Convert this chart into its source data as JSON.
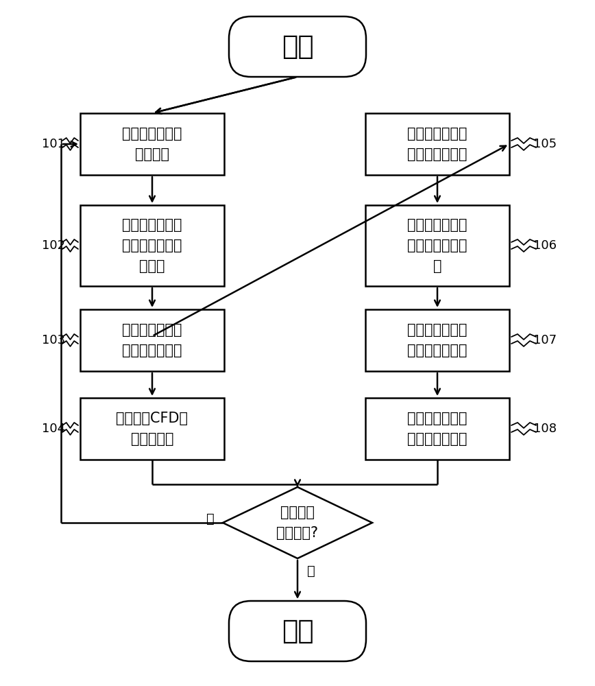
{
  "bg_color": "#ffffff",
  "line_color": "#000000",
  "box_color": "#ffffff",
  "text_color": "#000000",
  "start_text": "开始",
  "end_text": "结束",
  "left_boxes": [
    {
      "text": "将流体单独加载\n入求解器",
      "label": "101"
    },
    {
      "text": "将流固耦合壁面\n设为流体固定温\n度边界",
      "label": "102"
    },
    {
      "text": "开启流体区域的\n动量、湍流方程",
      "label": "103"
    },
    {
      "text": "使用稳态CFD方\n法更新流场",
      "label": "104"
    }
  ],
  "right_boxes": [
    {
      "text": "将流体与固体同\n时加载入求解器",
      "label": "105"
    },
    {
      "text": "将流固耦合壁面\n设为温度耦合边\n界",
      "label": "106"
    },
    {
      "text": "关闭流体区域的\n动量、湍流方程",
      "label": "107"
    },
    {
      "text": "使用实时耦合瞬\n态方法求解传热",
      "label": "108"
    }
  ],
  "diamond_text": "瞬态计算\n是否完成?",
  "yes_label": "是",
  "no_label": "否",
  "fig_w": 8.68,
  "fig_h": 10.0,
  "dpi": 100
}
